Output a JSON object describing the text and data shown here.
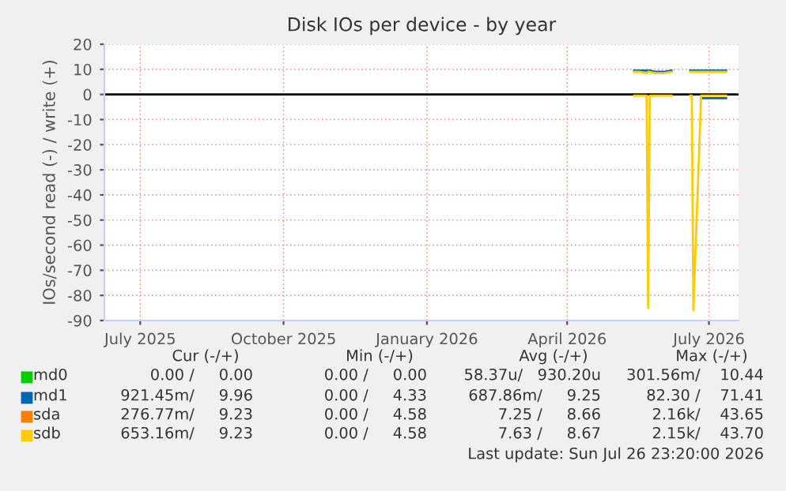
{
  "chart_data": {
    "type": "line",
    "title": "Disk IOs per device - by year",
    "ylabel": "IOs/second read (-) / write (+)",
    "x": [
      "2026-05-14",
      "2026-05-18",
      "2026-05-22",
      "2026-05-23",
      "2026-05-24",
      "2026-05-28",
      "2026-06-02",
      "2026-06-07",
      "2026-06-08",
      "2026-06-18",
      "2026-06-19",
      "2026-06-20",
      "2026-06-21",
      "2026-06-26",
      "2026-07-01",
      "2026-07-06",
      "2026-07-12"
    ],
    "series": [
      {
        "name": "md0",
        "color": "#00cc00",
        "values": [
          null,
          null,
          null,
          null,
          null,
          null,
          null,
          null,
          null,
          null,
          null,
          null,
          null,
          null,
          null,
          null,
          null
        ]
      },
      {
        "name": "md1",
        "color": "#0066b3",
        "values": [
          9.5,
          9.5,
          9.5,
          9.5,
          9.5,
          9,
          9,
          9.5,
          null,
          null,
          9.5,
          9.5,
          9.5,
          9.5,
          9.5,
          9.5,
          9.5
        ]
      },
      {
        "color": "#0066b3",
        "values": [
          null,
          null,
          null,
          null,
          null,
          null,
          null,
          null,
          null,
          null,
          null,
          null,
          null,
          -1.5,
          -1.5,
          -1.5,
          -1.5
        ]
      },
      {
        "name": "sda",
        "color": "#ff8000",
        "values": [
          null,
          null,
          null,
          null,
          null,
          null,
          null,
          null,
          null,
          null,
          null,
          null,
          null,
          null,
          null,
          null,
          null
        ]
      },
      {
        "name": "sdb",
        "color": "#ffcc00",
        "values": [
          9,
          9,
          8.5,
          9,
          9,
          8.5,
          8.5,
          9,
          null,
          null,
          9,
          9,
          9,
          9,
          9,
          9,
          9
        ]
      },
      {
        "color": "#ffcc00",
        "values": [
          -0.5,
          -0.5,
          -0.5,
          -85,
          -0.5,
          -0.5,
          -0.5,
          -0.5,
          null,
          null,
          -0.5,
          -0.5,
          -86,
          -0.5,
          -0.5,
          -0.5,
          -0.5
        ]
      }
    ],
    "xlim": [
      "2025-06-08",
      "2026-07-20"
    ],
    "xticks": [
      {
        "value": "2025-07-01",
        "label": "July 2025"
      },
      {
        "value": "2025-10-01",
        "label": "October 2025"
      },
      {
        "value": "2026-01-01",
        "label": "January 2026"
      },
      {
        "value": "2026-04-01",
        "label": "April 2026"
      },
      {
        "value": "2026-07-01",
        "label": "July 2026"
      }
    ],
    "ylim": [
      -90,
      20
    ],
    "yticks": [
      20,
      10,
      0,
      -10,
      -20,
      -30,
      -40,
      -50,
      -60,
      -70,
      -80,
      -90
    ],
    "ref_lines": [
      {
        "axis": "y",
        "value": 0,
        "color": "#000000"
      }
    ],
    "grid": true,
    "legend": "bottom",
    "annotations": [
      "Cur (-/+)",
      "Min (-/+)",
      "Avg (-/+)",
      "Max (-/+)",
      "0.00 /     0.00",
      "0.00 /     0.00",
      "58.37u/   930.20u",
      "301.56m/    10.44",
      "921.45m/     9.96",
      "0.00 /     4.33",
      "687.86m/     9.25",
      "82.30 /    71.41",
      "276.77m/     9.23",
      "0.00 /     4.58",
      "7.25 /     8.66",
      "2.16k/    43.65",
      "653.16m/     9.23",
      "0.00 /     4.58",
      "7.63 /     8.67",
      "2.15k/    43.70",
      "Last update: Sun Jul 26 23:20:00 2026"
    ]
  }
}
